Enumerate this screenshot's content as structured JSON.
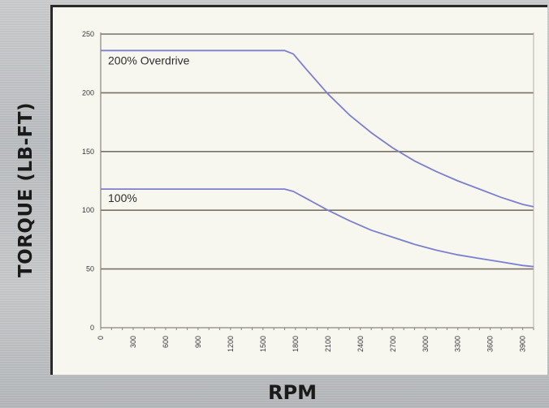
{
  "chart_data": {
    "type": "line",
    "xlabel": "RPM",
    "ylabel": "TORQUE (LB-FT)",
    "x_ticks": [
      "0",
      "300",
      "600",
      "900",
      "1200",
      "1500",
      "1800",
      "2100",
      "2400",
      "2700",
      "3000",
      "3300",
      "3600",
      "3900"
    ],
    "y_ticks": [
      "0",
      "50",
      "100",
      "150",
      "200",
      "250"
    ],
    "xlim": [
      0,
      4000
    ],
    "ylim": [
      0,
      250
    ],
    "grid": "horizontal",
    "annotations": [
      "200% Overdrive",
      "100%"
    ],
    "series": [
      {
        "name": "200% Overdrive",
        "color": "#7b7fd0",
        "x": [
          0,
          1700,
          1780,
          1900,
          2100,
          2300,
          2500,
          2700,
          2900,
          3100,
          3300,
          3500,
          3700,
          3900,
          4000
        ],
        "y": [
          236,
          236,
          233,
          220,
          199,
          181,
          166,
          153,
          142,
          133,
          125,
          118,
          111,
          105,
          103
        ]
      },
      {
        "name": "100%",
        "color": "#7b7fd0",
        "x": [
          0,
          1700,
          1780,
          1900,
          2100,
          2300,
          2500,
          2700,
          2900,
          3100,
          3300,
          3500,
          3700,
          3900,
          4000
        ],
        "y": [
          118,
          118,
          116,
          110,
          100,
          91,
          83,
          77,
          71,
          66,
          62,
          59,
          56,
          53,
          52
        ]
      }
    ]
  }
}
